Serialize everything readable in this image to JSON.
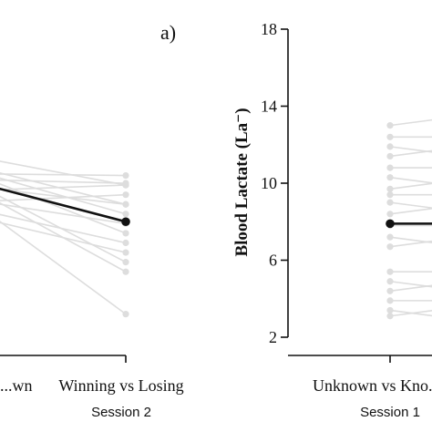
{
  "panel_label": "a)",
  "chart_data": [
    {
      "type": "line",
      "panel": "left-partial",
      "xlabel": "Session 2",
      "ylabel": "",
      "categories": [
        "...wn",
        "Winning vs Losing"
      ],
      "series": [
        {
          "values": [
            10.8,
            8.4
          ],
          "color": "#dddddd"
        },
        {
          "values": [
            10.2,
            10.0
          ],
          "color": "#dddddd"
        },
        {
          "values": [
            11.0,
            8.9
          ],
          "color": "#dddddd"
        },
        {
          "values": [
            9.6,
            9.9
          ],
          "color": "#dddddd"
        },
        {
          "values": [
            10.5,
            10.4
          ],
          "color": "#dddddd"
        },
        {
          "values": [
            9.2,
            7.9
          ],
          "color": "#dddddd"
        },
        {
          "values": [
            8.8,
            6.9
          ],
          "color": "#dddddd"
        },
        {
          "values": [
            9.9,
            8.9
          ],
          "color": "#dddddd"
        },
        {
          "values": [
            11.5,
            9.9
          ],
          "color": "#dddddd"
        },
        {
          "values": [
            8.4,
            6.4
          ],
          "color": "#dddddd"
        },
        {
          "values": [
            10.0,
            5.4
          ],
          "color": "#dddddd"
        },
        {
          "values": [
            9.4,
            3.2
          ],
          "color": "#dddddd"
        },
        {
          "values": [
            10.7,
            7.4
          ],
          "color": "#dddddd"
        },
        {
          "values": [
            9.0,
            9.4
          ],
          "color": "#dddddd"
        },
        {
          "values": [
            10.3,
            5.9
          ],
          "color": "#dddddd"
        }
      ],
      "mean": {
        "values": [
          10.2,
          8.0
        ],
        "color": "#111111"
      }
    },
    {
      "type": "line",
      "panel": "right-partial",
      "xlabel": "Session 1",
      "ylabel": "Blood Lactate (La⁻)",
      "ylim": [
        2,
        18
      ],
      "yticks": [
        "2",
        "6",
        "10",
        "14",
        "18"
      ],
      "categories": [
        "Unknown vs Kno..."
      ],
      "points": [
        13.0,
        12.4,
        11.9,
        11.4,
        10.8,
        10.3,
        9.7,
        9.4,
        9.0,
        8.4,
        7.8,
        7.2,
        6.7,
        5.4,
        4.9,
        4.4,
        3.9,
        3.4,
        3.1
      ],
      "point_color": "#dddddd",
      "mean": {
        "value": 7.9,
        "color": "#111111"
      }
    }
  ]
}
